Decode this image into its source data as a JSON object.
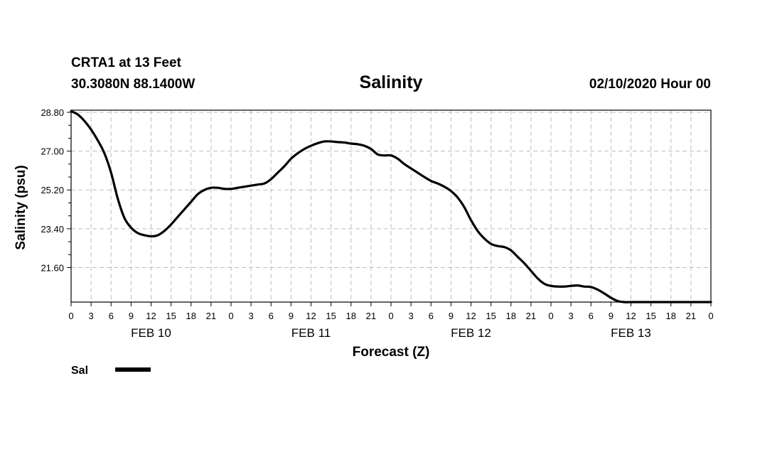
{
  "chart_data": {
    "type": "line",
    "station": "CRTA1 at 13 Feet",
    "location": "30.3080N 88.1400W",
    "title": "Salinity",
    "issued": "02/10/2020 Hour 00",
    "xlabel": "Forecast (Z)",
    "ylabel": "Salinity (psu)",
    "x_unit": "hours from 02/10/2020 00Z",
    "xlim": [
      0,
      96
    ],
    "ylim": [
      20.0,
      28.9
    ],
    "yticks": [
      "21.60",
      "23.40",
      "25.20",
      "27.00",
      "28.80"
    ],
    "ytick_values": [
      21.6,
      23.4,
      25.2,
      27.0,
      28.8
    ],
    "xtick_labels": [
      "0",
      "3",
      "6",
      "9",
      "12",
      "15",
      "18",
      "21",
      "0",
      "3",
      "6",
      "9",
      "12",
      "15",
      "18",
      "21",
      "0",
      "3",
      "6",
      "9",
      "12",
      "15",
      "18",
      "21",
      "0",
      "3",
      "6",
      "9",
      "12",
      "15",
      "18",
      "21",
      "0"
    ],
    "day_labels": [
      "FEB 10",
      "FEB 11",
      "FEB 12",
      "FEB 13"
    ],
    "grid": true,
    "legend": [
      {
        "label": "Sal",
        "color": "#000000"
      }
    ],
    "series": [
      {
        "name": "Sal",
        "color": "#000000",
        "x": [
          0,
          1,
          2,
          3,
          4,
          5,
          6,
          7,
          8,
          9,
          10,
          11,
          12,
          13,
          14,
          15,
          16,
          17,
          18,
          19,
          20,
          21,
          22,
          23,
          24,
          25,
          26,
          27,
          28,
          29,
          30,
          31,
          32,
          33,
          34,
          35,
          36,
          37,
          38,
          39,
          40,
          41,
          42,
          43,
          44,
          45,
          46,
          47,
          48,
          49,
          50,
          51,
          52,
          53,
          54,
          55,
          56,
          57,
          58,
          59,
          60,
          61,
          62,
          63,
          64,
          65,
          66,
          67,
          68,
          69,
          70,
          71,
          72,
          73,
          74,
          75,
          76,
          77,
          78,
          79,
          80,
          81,
          82,
          83,
          84,
          85,
          86,
          87,
          88,
          89,
          90,
          91,
          92,
          93,
          94,
          95,
          96
        ],
        "y": [
          28.85,
          28.7,
          28.4,
          28.0,
          27.5,
          26.9,
          26.0,
          24.8,
          23.9,
          23.45,
          23.2,
          23.1,
          23.05,
          23.1,
          23.3,
          23.6,
          23.95,
          24.3,
          24.65,
          25.0,
          25.2,
          25.3,
          25.3,
          25.25,
          25.25,
          25.3,
          25.35,
          25.4,
          25.45,
          25.5,
          25.7,
          26.0,
          26.3,
          26.65,
          26.9,
          27.1,
          27.25,
          27.37,
          27.45,
          27.45,
          27.42,
          27.4,
          27.35,
          27.32,
          27.25,
          27.1,
          26.85,
          26.8,
          26.8,
          26.65,
          26.4,
          26.2,
          26.0,
          25.8,
          25.62,
          25.5,
          25.35,
          25.15,
          24.85,
          24.4,
          23.8,
          23.3,
          22.95,
          22.7,
          22.6,
          22.55,
          22.4,
          22.1,
          21.8,
          21.45,
          21.1,
          20.85,
          20.75,
          20.72,
          20.72,
          20.75,
          20.77,
          20.72,
          20.7,
          20.58,
          20.4,
          20.2,
          20.05,
          20.0,
          20.0,
          20.0,
          20.0,
          20.0,
          20.0,
          20.0,
          20.0,
          20.0,
          20.0,
          20.0,
          20.0,
          20.0,
          20.0
        ]
      }
    ]
  }
}
